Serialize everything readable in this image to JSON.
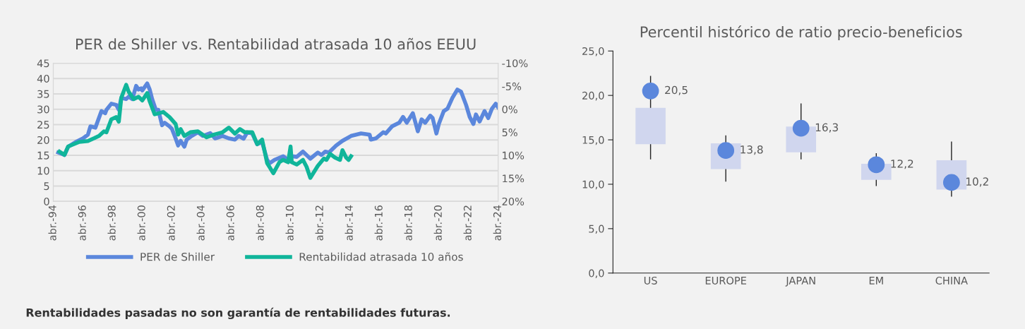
{
  "chart_data": [
    {
      "type": "line",
      "title": "PER de Shiller vs. Rentabilidad atrasada 10 años EEUU",
      "xlim": [
        "1994-04",
        "2024-04"
      ],
      "xticks": [
        {
          "value": "1994-04",
          "label": "abr.-94"
        },
        {
          "value": "1996-04",
          "label": "abr.-96"
        },
        {
          "value": "1998-04",
          "label": "abr.-98"
        },
        {
          "value": "2000-04",
          "label": "abr.-00"
        },
        {
          "value": "2002-04",
          "label": "abr.-02"
        },
        {
          "value": "2004-04",
          "label": "abr.-04"
        },
        {
          "value": "2006-04",
          "label": "abr.-06"
        },
        {
          "value": "2008-04",
          "label": "abr.-08"
        },
        {
          "value": "2010-04",
          "label": "abr.-10"
        },
        {
          "value": "2012-04",
          "label": "abr.-12"
        },
        {
          "value": "2014-04",
          "label": "abr.-14"
        },
        {
          "value": "2016-04",
          "label": "abr.-16"
        },
        {
          "value": "2018-04",
          "label": "abr.-18"
        },
        {
          "value": "2020-04",
          "label": "abr.-20"
        },
        {
          "value": "2022-04",
          "label": "abr.-22"
        },
        {
          "value": "2024-04",
          "label": "abr.-24"
        }
      ],
      "ylim": [
        0,
        45
      ],
      "yticks": [
        0,
        5,
        10,
        15,
        20,
        25,
        30,
        35,
        40,
        45
      ],
      "y2lim": [
        20,
        -10
      ],
      "y2ticks": [
        {
          "value": 20,
          "label": "20%"
        },
        {
          "value": 15,
          "label": "15%"
        },
        {
          "value": 10,
          "label": "10%"
        },
        {
          "value": 5,
          "label": "5%"
        },
        {
          "value": 0,
          "label": "0%"
        },
        {
          "value": -5,
          "label": "-5%"
        },
        {
          "value": -10,
          "label": "-10%"
        }
      ],
      "grid": "y",
      "legend": "bottom",
      "series": [
        {
          "name": "PER de Shiller",
          "color": "#5b87dc",
          "x": [
            "1994-08",
            "1995-01",
            "1995-04",
            "1995-10",
            "1996-04",
            "1996-08",
            "1996-10",
            "1997-02",
            "1997-07",
            "1997-10",
            "1997-11",
            "1998-03",
            "1998-07",
            "1998-09",
            "1998-11",
            "1999-03",
            "1999-05",
            "1999-08",
            "1999-11",
            "2000-01",
            "2000-03",
            "2000-04",
            "2000-08",
            "2000-10",
            "2000-12",
            "2001-03",
            "2001-05",
            "2001-08",
            "2001-10",
            "2002-02",
            "2002-04",
            "2002-07",
            "2002-09",
            "2002-11",
            "2003-02",
            "2003-04",
            "2003-08",
            "2004-01",
            "2004-05",
            "2004-11",
            "2005-03",
            "2005-09",
            "2006-02",
            "2006-07",
            "2006-10",
            "2007-02",
            "2007-05",
            "2007-09",
            "2008-01",
            "2008-05",
            "2008-09",
            "2008-11",
            "2009-03",
            "2009-10",
            "2010-02",
            "2010-05",
            "2010-09",
            "2011-02",
            "2011-08",
            "2012-02",
            "2012-05",
            "2012-08",
            "2012-11",
            "2013-05",
            "2013-10",
            "2014-05",
            "2015-01",
            "2015-08",
            "2015-09",
            "2016-01",
            "2016-07",
            "2016-09",
            "2017-02",
            "2017-08",
            "2017-11",
            "2018-02",
            "2018-07",
            "2018-11",
            "2019-02",
            "2019-05",
            "2019-09",
            "2019-11",
            "2020-02",
            "2020-04",
            "2020-08",
            "2020-11",
            "2021-03",
            "2021-07",
            "2021-10",
            "2022-02",
            "2022-05",
            "2022-08",
            "2022-10",
            "2023-01",
            "2023-05",
            "2023-08",
            "2023-11",
            "2024-02",
            "2024-04"
          ],
          "values": [
            15.9,
            15.1,
            17.8,
            19.3,
            20.5,
            21.7,
            24.4,
            24.0,
            29.4,
            28.7,
            29.8,
            31.8,
            31.4,
            29.8,
            33.7,
            33.3,
            34.1,
            33.3,
            37.6,
            36.4,
            36.8,
            36.1,
            38.4,
            36.4,
            33.3,
            29.8,
            29.8,
            24.8,
            25.6,
            24.4,
            23.6,
            20.5,
            18.2,
            19.7,
            17.8,
            20.1,
            21.3,
            22.5,
            21.3,
            22.2,
            20.5,
            21.3,
            20.5,
            20.1,
            21.3,
            20.4,
            22.5,
            22.1,
            18.6,
            19.3,
            13.5,
            12.4,
            13.5,
            14.7,
            13.5,
            14.7,
            14.5,
            16.2,
            13.9,
            15.9,
            15.1,
            16.2,
            15.9,
            18.2,
            19.7,
            21.3,
            22.1,
            21.7,
            20.1,
            20.5,
            22.5,
            22.1,
            24.4,
            25.6,
            27.5,
            25.6,
            28.7,
            22.8,
            26.7,
            25.6,
            27.9,
            27.1,
            22.1,
            25.2,
            29.4,
            30.2,
            33.7,
            36.4,
            35.7,
            31.4,
            27.5,
            25.2,
            28.3,
            26.0,
            29.4,
            27.1,
            30.2,
            31.8,
            30.6
          ]
        },
        {
          "name": "Rentabilidad atrasada 10 años",
          "color": "#10b59a",
          "axis": "y2",
          "x": [
            "1994-09",
            "1995-01",
            "1995-04",
            "1996-01",
            "1996-08",
            "1997-01",
            "1997-05",
            "1997-09",
            "1997-11",
            "1998-03",
            "1998-07",
            "1998-09",
            "1998-11",
            "1999-03",
            "1999-05",
            "1999-09",
            "2000-01",
            "2000-04",
            "2000-08",
            "2000-10",
            "2001-02",
            "2001-05",
            "2001-09",
            "2002-02",
            "2002-07",
            "2002-09",
            "2002-11",
            "2003-02",
            "2003-07",
            "2004-01",
            "2004-08",
            "2005-02",
            "2005-09",
            "2006-02",
            "2006-07",
            "2006-11",
            "2007-03",
            "2007-09",
            "2008-01",
            "2008-05",
            "2008-09",
            "2009-02",
            "2009-07",
            "2009-10",
            "2010-02",
            "2010-04",
            "2010-05",
            "2010-09",
            "2011-02",
            "2011-05",
            "2011-08",
            "2011-11",
            "2012-02",
            "2012-07",
            "2012-09",
            "2012-12",
            "2013-04",
            "2013-08",
            "2013-10",
            "2014-01",
            "2014-03",
            "2014-05"
          ],
          "values": [
            9.2,
            9.9,
            8.1,
            7.1,
            6.9,
            6.3,
            5.8,
            4.8,
            5.0,
            2.2,
            1.7,
            2.7,
            -2.5,
            -5.3,
            -3.8,
            -2.2,
            -2.7,
            -1.9,
            -3.5,
            -1.7,
            1.1,
            0.9,
            0.6,
            1.7,
            3.2,
            5.5,
            4.3,
            5.8,
            5.0,
            4.8,
            6.1,
            5.5,
            5.0,
            4.0,
            5.3,
            4.3,
            5.0,
            5.0,
            7.6,
            6.6,
            11.7,
            13.9,
            11.5,
            11.0,
            11.5,
            8.1,
            11.5,
            12.0,
            11.0,
            12.5,
            14.9,
            13.6,
            12.3,
            10.7,
            11.0,
            9.7,
            10.5,
            11.0,
            8.9,
            10.5,
            11.0,
            10.2
          ]
        }
      ]
    },
    {
      "type": "bar",
      "title": "Percentil histórico de ratio precio-beneficios",
      "categories": [
        "US",
        "EUROPE",
        "JAPAN",
        "EM",
        "CHINA"
      ],
      "ylim": [
        0,
        25
      ],
      "yticks": [
        {
          "value": 0,
          "label": "0,0"
        },
        {
          "value": 5,
          "label": "5,0"
        },
        {
          "value": 10,
          "label": "10,0"
        },
        {
          "value": 15,
          "label": "15,0"
        },
        {
          "value": 20,
          "label": "20,0"
        },
        {
          "value": 25,
          "label": "25,0"
        }
      ],
      "series": [
        {
          "type": "bar",
          "color": "#d0d6ee",
          "base": [
            14.5,
            11.7,
            13.6,
            10.5,
            9.4
          ],
          "values": [
            4.1,
            2.9,
            2.9,
            1.8,
            3.3
          ]
        },
        {
          "type": "scatter",
          "color": "#5b87dc",
          "marker": "circle",
          "values": [
            20.5,
            13.8,
            16.3,
            12.2,
            10.2
          ],
          "errors": [
            [
              12.8,
              22.2
            ],
            [
              10.3,
              15.5
            ],
            [
              12.8,
              19.1
            ],
            [
              9.8,
              13.5
            ],
            [
              8.6,
              14.8
            ]
          ],
          "value_labels": [
            "20,5",
            "13,8",
            "16,3",
            "12,2",
            "10,2"
          ]
        }
      ],
      "annotations": [
        "Rentabilidades pasadas no son garantía de rentabilidades futuras."
      ]
    }
  ]
}
